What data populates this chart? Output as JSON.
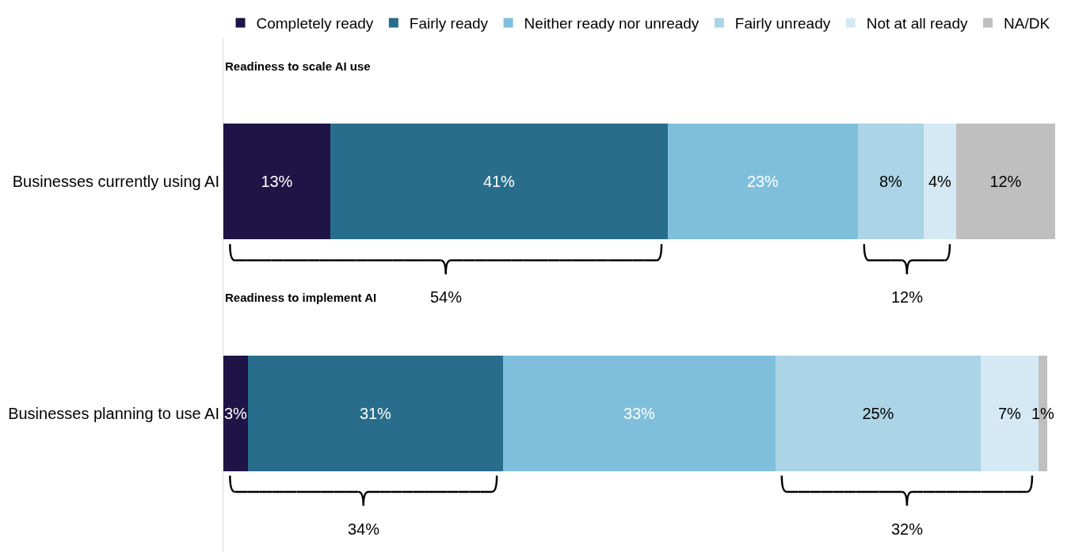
{
  "chart_data": {
    "type": "bar",
    "orientation": "horizontal",
    "stacked": true,
    "legend": "top",
    "tick_labels": "y",
    "categories": [
      "Businesses currently using AI",
      "Businesses planning to use AI"
    ],
    "series": [
      {
        "name": "Completely ready",
        "color": "#1e1446",
        "values": [
          13,
          3
        ],
        "value_labels": [
          "13%",
          "3%"
        ]
      },
      {
        "name": "Fairly ready",
        "color": "#286e8c",
        "values": [
          41,
          31
        ],
        "value_labels": [
          "41%",
          "31%"
        ]
      },
      {
        "name": "Neither ready nor unready",
        "color": "#7fbfdc",
        "values": [
          23,
          33
        ],
        "value_labels": [
          "23%",
          "33%"
        ]
      },
      {
        "name": "Fairly unready",
        "color": "#abd4e6",
        "values": [
          8,
          25
        ],
        "value_labels": [
          "8%",
          "25%"
        ]
      },
      {
        "name": "Not at all ready",
        "color": "#d4e9f4",
        "values": [
          4,
          7
        ],
        "value_labels": [
          "4%",
          "7%"
        ]
      },
      {
        "name": "NA/DK",
        "color": "#bfbfbf",
        "values": [
          12,
          1
        ],
        "value_labels": [
          "12%",
          "1%"
        ]
      }
    ],
    "annotations": [
      "Readiness to scale AI use",
      "54%",
      "12%",
      "Readiness to implement AI",
      "34%",
      "32%"
    ]
  }
}
